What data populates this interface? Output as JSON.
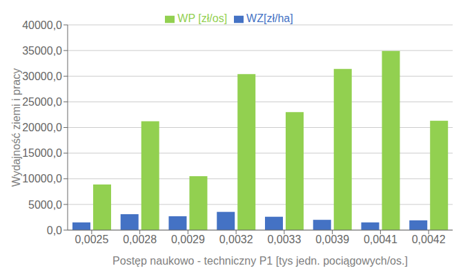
{
  "chart_data": {
    "type": "bar",
    "categories": [
      "0,0025",
      "0,0028",
      "0,0029",
      "0,0032",
      "0,0033",
      "0,0039",
      "0,0041",
      "0,0042"
    ],
    "series": [
      {
        "name": "WZ[zł/ha]",
        "color": "#4472C4",
        "values": [
          1500,
          3100,
          2700,
          3550,
          2600,
          2000,
          1500,
          1900
        ]
      },
      {
        "name": "WP [zł/os]",
        "color": "#92D050",
        "values": [
          8900,
          21200,
          10500,
          30400,
          23000,
          31400,
          34900,
          21300
        ]
      }
    ],
    "x_label": "Postęp naukowo - techniczny P1 [tys jedn. pociągowych/os.]",
    "y_label": "Wydajność ziemi i pracy",
    "ylim": [
      0,
      40000
    ],
    "yticks": [
      {
        "value": 0,
        "label": "0,0"
      },
      {
        "value": 5000,
        "label": "5000,0"
      },
      {
        "value": 10000,
        "label": "10000,0"
      },
      {
        "value": 15000,
        "label": "15000,0"
      },
      {
        "value": 20000,
        "label": "20000,0"
      },
      {
        "value": 25000,
        "label": "25000,0"
      },
      {
        "value": 30000,
        "label": "30000,0"
      },
      {
        "value": 35000,
        "label": "35000,0"
      },
      {
        "value": 40000,
        "label": "40000,0"
      }
    ],
    "grid": true,
    "legend": "top"
  }
}
